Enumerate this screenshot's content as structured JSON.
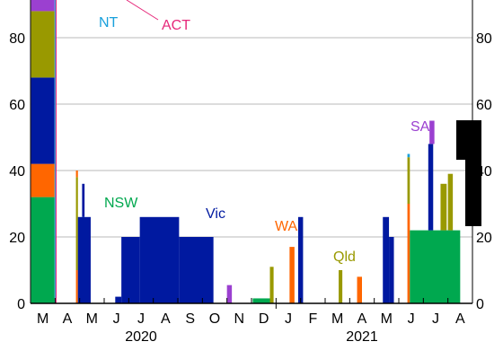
{
  "chart_data": {
    "type": "bar",
    "stacked": true,
    "title": "",
    "xlabel": "",
    "ylabel": "",
    "ylim": [
      0,
      100
    ],
    "yticks": [
      0,
      20,
      40,
      60,
      80
    ],
    "grid": true,
    "dual_y_axis": true,
    "months": [
      "M",
      "A",
      "M",
      "J",
      "J",
      "A",
      "S",
      "O",
      "N",
      "D",
      "J",
      "F",
      "M",
      "A",
      "M",
      "J",
      "J",
      "A"
    ],
    "year_labels": [
      {
        "text": "2020",
        "month_index": 4.5
      },
      {
        "text": "2021",
        "month_index": 13.5
      }
    ],
    "colors": {
      "NSW": "#00a84f",
      "Vic": "#0019a0",
      "Qld": "#999900",
      "WA": "#ff6600",
      "SA": "#9b40d0",
      "NT": "#19a0dc",
      "ACT": "#e6287a",
      "grid": "#b9b9b9"
    },
    "annotations": [
      {
        "text": "NT",
        "series": "NT"
      },
      {
        "text": "ACT",
        "series": "ACT"
      },
      {
        "text": "NSW",
        "series": "NSW"
      },
      {
        "text": "Vic",
        "series": "Vic"
      },
      {
        "text": "WA",
        "series": "WA"
      },
      {
        "text": "Qld",
        "series": "Qld"
      },
      {
        "text": "SA",
        "series": "SA"
      }
    ],
    "segments": [
      {
        "series": "NSW",
        "start": 0.02,
        "end": 0.98,
        "from": 0,
        "to": 32
      },
      {
        "series": "WA",
        "start": 0.02,
        "end": 0.98,
        "from": 32,
        "to": 42
      },
      {
        "series": "Vic",
        "start": 0.02,
        "end": 0.98,
        "from": 42,
        "to": 68
      },
      {
        "series": "Qld",
        "start": 0.02,
        "end": 0.98,
        "from": 68,
        "to": 88
      },
      {
        "series": "SA",
        "start": 0.02,
        "end": 0.98,
        "from": 88,
        "to": 100
      },
      {
        "series": "NT",
        "start": 0.98,
        "end": 1.02,
        "from": 0,
        "to": 100
      },
      {
        "series": "ACT",
        "start": 1.02,
        "end": 1.06,
        "from": 0,
        "to": 100
      },
      {
        "series": "WA",
        "start": 1.85,
        "end": 1.93,
        "from": 0,
        "to": 10
      },
      {
        "series": "Qld",
        "start": 1.85,
        "end": 1.93,
        "from": 10,
        "to": 38
      },
      {
        "series": "WA",
        "start": 1.85,
        "end": 1.93,
        "from": 38,
        "to": 40
      },
      {
        "series": "Vic",
        "start": 1.93,
        "end": 2.45,
        "from": 0,
        "to": 26
      },
      {
        "series": "Vic",
        "start": 2.1,
        "end": 2.2,
        "from": 26,
        "to": 36
      },
      {
        "series": "Vic",
        "start": 3.45,
        "end": 3.7,
        "from": 0,
        "to": 2
      },
      {
        "series": "Vic",
        "start": 3.7,
        "end": 4.45,
        "from": 0,
        "to": 20
      },
      {
        "series": "Vic",
        "start": 4.45,
        "end": 6.05,
        "from": 0,
        "to": 26
      },
      {
        "series": "Vic",
        "start": 6.05,
        "end": 7.45,
        "from": 0,
        "to": 20
      },
      {
        "series": "SA",
        "start": 8.0,
        "end": 8.2,
        "from": 0,
        "to": 5.5
      },
      {
        "series": "NSW",
        "start": 9.05,
        "end": 9.75,
        "from": 0,
        "to": 1.5
      },
      {
        "series": "Qld",
        "start": 9.75,
        "end": 9.9,
        "from": 0,
        "to": 11
      },
      {
        "series": "Vic",
        "start": 10.9,
        "end": 11.1,
        "from": 0,
        "to": 26
      },
      {
        "series": "WA",
        "start": 10.55,
        "end": 10.75,
        "from": 0,
        "to": 17
      },
      {
        "series": "Qld",
        "start": 12.55,
        "end": 12.7,
        "from": 0,
        "to": 10
      },
      {
        "series": "WA",
        "start": 13.3,
        "end": 13.5,
        "from": 0,
        "to": 8
      },
      {
        "series": "Vic",
        "start": 14.35,
        "end": 14.6,
        "from": 0,
        "to": 26
      },
      {
        "series": "Vic",
        "start": 14.6,
        "end": 14.8,
        "from": 0,
        "to": 20
      },
      {
        "series": "WA",
        "start": 15.35,
        "end": 15.45,
        "from": 0,
        "to": 30
      },
      {
        "series": "Qld",
        "start": 15.35,
        "end": 15.45,
        "from": 30,
        "to": 44
      },
      {
        "series": "NT",
        "start": 15.35,
        "end": 15.45,
        "from": 44,
        "to": 45
      },
      {
        "series": "NSW",
        "start": 15.45,
        "end": 17.5,
        "from": 0,
        "to": 22
      },
      {
        "series": "Vic",
        "start": 16.2,
        "end": 16.4,
        "from": 22,
        "to": 48
      },
      {
        "series": "SA",
        "start": 16.25,
        "end": 16.45,
        "from": 48,
        "to": 55
      },
      {
        "series": "Qld",
        "start": 16.7,
        "end": 16.95,
        "from": 22,
        "to": 36
      },
      {
        "series": "Qld",
        "start": 17.0,
        "end": 17.2,
        "from": 22,
        "to": 39
      }
    ]
  }
}
